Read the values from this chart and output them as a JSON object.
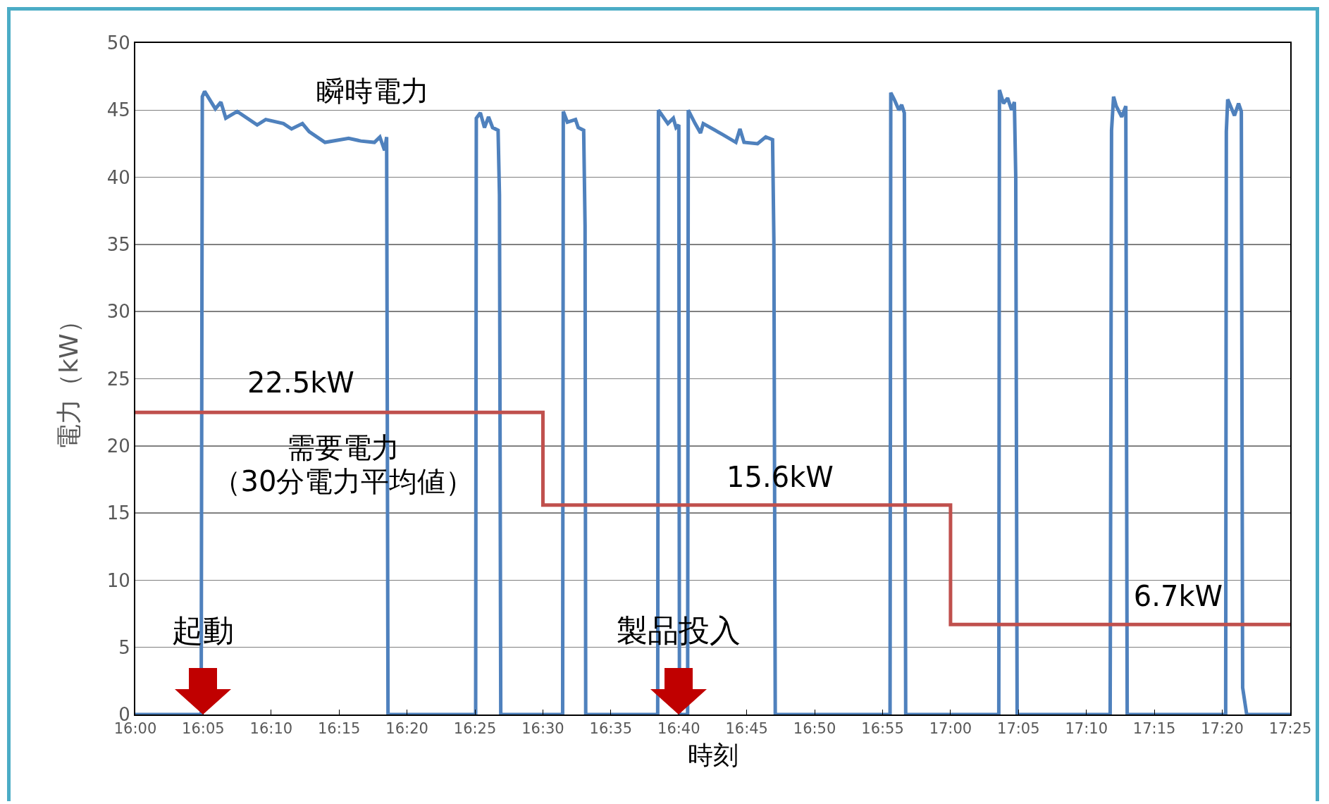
{
  "chart_data": {
    "type": "line",
    "xlabel": "時刻",
    "ylabel": "電力（kW）",
    "xlim": [
      16,
      17.4167
    ],
    "xticks": [
      {
        "value": 16,
        "label": "16:00"
      },
      {
        "value": 16.0833,
        "label": "16:05"
      },
      {
        "value": 16.1667,
        "label": "16:10"
      },
      {
        "value": 16.25,
        "label": "16:15"
      },
      {
        "value": 16.3333,
        "label": "16:20"
      },
      {
        "value": 16.4167,
        "label": "16:25"
      },
      {
        "value": 16.5,
        "label": "16:30"
      },
      {
        "value": 16.5833,
        "label": "16:35"
      },
      {
        "value": 16.6667,
        "label": "16:40"
      },
      {
        "value": 16.75,
        "label": "16:45"
      },
      {
        "value": 16.8333,
        "label": "16:50"
      },
      {
        "value": 16.9167,
        "label": "16:55"
      },
      {
        "value": 17,
        "label": "17:00"
      },
      {
        "value": 17.0833,
        "label": "17:05"
      },
      {
        "value": 17.1667,
        "label": "17:10"
      },
      {
        "value": 17.25,
        "label": "17:15"
      },
      {
        "value": 17.3333,
        "label": "17:20"
      },
      {
        "value": 17.4167,
        "label": "17:25"
      }
    ],
    "ylim": [
      0,
      50
    ],
    "yticks": [
      0,
      5,
      10,
      15,
      20,
      25,
      30,
      35,
      40,
      45,
      50
    ],
    "grid": "y",
    "marker": "none",
    "line_style": "solid",
    "series": [
      {
        "type": "line",
        "color": "#4f81bd",
        "x": [
          16,
          16.0808,
          16.0822,
          16.085,
          16.0982,
          16.105,
          16.111,
          16.125,
          16.1495,
          16.16,
          16.1817,
          16.1917,
          16.205,
          16.2133,
          16.2327,
          16.2617,
          16.2767,
          16.2933,
          16.3,
          16.3058,
          16.3083,
          16.31,
          16.4175,
          16.4183,
          16.4233,
          16.4283,
          16.4333,
          16.4383,
          16.445,
          16.4467,
          16.4483,
          16.5242,
          16.525,
          16.53,
          16.54,
          16.5433,
          16.55,
          16.5517,
          16.5525,
          16.6408,
          16.6417,
          16.6533,
          16.66,
          16.6633,
          16.6667,
          16.6675,
          16.6775,
          16.6783,
          16.6867,
          16.6933,
          16.6967,
          16.72,
          16.7367,
          16.7417,
          16.7467,
          16.7633,
          16.7733,
          16.7817,
          16.7833,
          16.785,
          16.9258,
          16.9267,
          16.9317,
          16.9367,
          16.94,
          16.9433,
          16.945,
          17.0592,
          17.06,
          17.065,
          17.07,
          17.075,
          17.0783,
          17.08,
          17.0817,
          17.1958,
          17.1975,
          17.2,
          17.2033,
          17.21,
          17.215,
          17.2167,
          17.3375,
          17.3383,
          17.34,
          17.3483,
          17.3533,
          17.3567,
          17.3583,
          17.3633,
          17.4167
        ],
        "values": [
          0,
          0,
          46.0,
          46.4,
          45.1,
          45.6,
          44.4,
          44.9,
          43.9,
          44.3,
          44.0,
          43.6,
          44.0,
          43.4,
          42.6,
          42.9,
          42.7,
          42.6,
          43.0,
          42.0,
          43.0,
          0,
          0,
          44.4,
          44.8,
          43.7,
          44.5,
          43.7,
          43.5,
          38.7,
          0,
          0,
          44.9,
          44.1,
          44.3,
          43.7,
          43.5,
          36.4,
          0,
          0,
          45.0,
          44.0,
          44.4,
          43.7,
          43.9,
          0,
          0,
          45.0,
          44.0,
          43.3,
          44.0,
          43.2,
          42.6,
          43.6,
          42.6,
          42.5,
          43.0,
          42.8,
          35.4,
          0,
          0,
          46.3,
          45.7,
          45.0,
          45.4,
          44.8,
          0,
          0,
          46.5,
          45.5,
          45.9,
          45.0,
          45.6,
          40.0,
          0,
          0,
          43.5,
          46.0,
          45.3,
          44.5,
          45.3,
          0,
          0,
          43.4,
          45.8,
          44.6,
          45.5,
          44.9,
          2.0,
          0,
          0
        ]
      },
      {
        "type": "step",
        "color": "#c0504d",
        "x": [
          16,
          16.5,
          17,
          17.4167
        ],
        "values": [
          22.5,
          15.6,
          6.7,
          6.7
        ]
      }
    ],
    "annotations": [
      "瞬時電力",
      "22.5kW",
      "需要電力（30分電力平均値）",
      "15.6kW",
      "6.7kW",
      {
        "text": "起動",
        "x": 16.0833,
        "y": 0
      },
      {
        "text": "製品投入",
        "x": 16.6667,
        "y": 0
      }
    ]
  }
}
